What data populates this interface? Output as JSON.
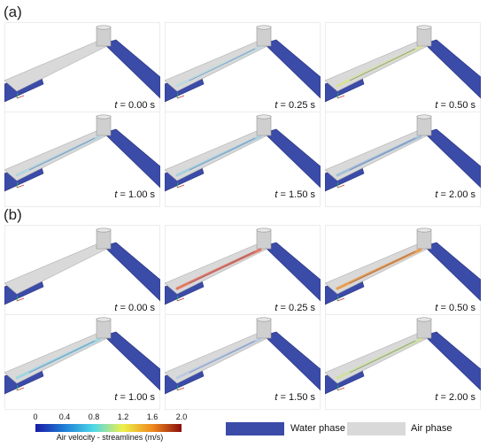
{
  "sections": [
    {
      "label": "(a)",
      "times": [
        "0.00 s",
        "0.25 s",
        "0.50 s",
        "1.00 s",
        "1.50 s",
        "2.00 s"
      ]
    },
    {
      "label": "(b)",
      "times": [
        "0.00 s",
        "0.25 s",
        "0.50 s",
        "1.00 s",
        "1.50 s",
        "2.00 s"
      ]
    }
  ],
  "time_prefix": "t",
  "time_eq": " = ",
  "colorbar": {
    "ticks": [
      "0",
      "0.4",
      "0.8",
      "1.2",
      "1.6",
      "2.0"
    ],
    "title": "Air velocity - streamlines (m/s)",
    "colors": [
      "#1a1aa6",
      "#1f7fd6",
      "#4fd8e8",
      "#eef04a",
      "#f08a1e",
      "#8a0e0e"
    ]
  },
  "phase_legend": {
    "water_label": "Water phase",
    "air_label": "Air phase",
    "water_color": "#3b4ba8",
    "air_color": "#d9d9d9"
  }
}
